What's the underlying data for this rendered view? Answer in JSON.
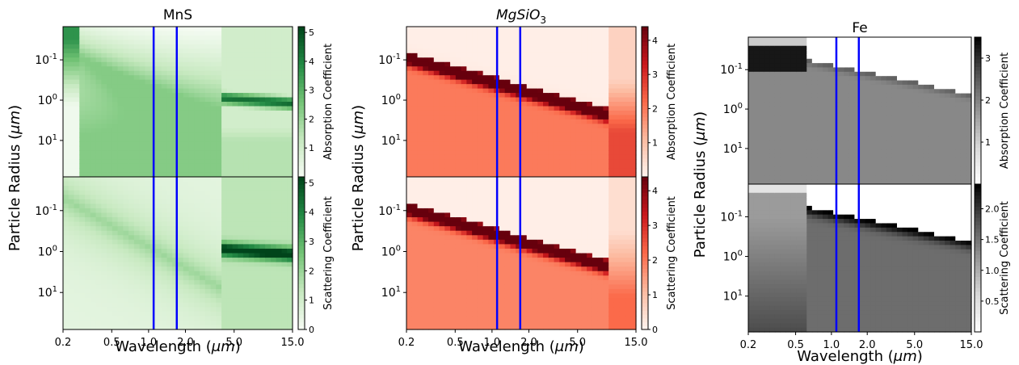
{
  "chart_data": [
    {
      "type": "heatmap",
      "title": "MnS",
      "cmap": "greens",
      "xlabel": "Wavelength (μm)",
      "ylabel": "Particle Radius (μm)",
      "x_scale": "log",
      "y_scale": "log",
      "y_inverted": true,
      "xlim": [
        0.2,
        15.0
      ],
      "ylim_um": [
        0.015,
        80
      ],
      "x_ticks": [
        "0.2",
        "0.5",
        "1.0",
        "2.0",
        "5.0",
        "15.0"
      ],
      "y_ticks": [
        "10^-1",
        "10^0",
        "10^1"
      ],
      "vlines_um": [
        1.1,
        1.7
      ],
      "vline_color": "#0000ff",
      "panels": [
        {
          "name": "Absorption",
          "colorbar_label": "Absorption Coefficient",
          "vmax": 5.2,
          "cbar_ticks": [
            "1",
            "2",
            "3",
            "4",
            "5"
          ]
        },
        {
          "name": "Scattering",
          "colorbar_label": "Scattering Coefficient",
          "vmax": 5.2,
          "cbar_ticks": [
            "0",
            "1",
            "2",
            "3",
            "4",
            "5"
          ]
        }
      ]
    },
    {
      "type": "heatmap",
      "title": "MgSiO3",
      "title_display": "MgSiO",
      "title_subscript": "3",
      "cmap": "reds",
      "xlabel": "Wavelength (μm)",
      "ylabel": "Particle Radius (μm)",
      "x_scale": "log",
      "y_scale": "log",
      "y_inverted": true,
      "xlim": [
        0.2,
        15.0
      ],
      "ylim_um": [
        0.015,
        80
      ],
      "x_ticks": [
        "0.2",
        "0.5",
        "1.0",
        "2.0",
        "5.0",
        "15.0"
      ],
      "y_ticks": [
        "10^-1",
        "10^0",
        "10^1"
      ],
      "vlines_um": [
        1.1,
        1.7
      ],
      "vline_color": "#0000ff",
      "panels": [
        {
          "name": "Absorption",
          "colorbar_label": "Absorption Coefficient",
          "vmax": 4.4,
          "cbar_ticks": [
            "1",
            "2",
            "3",
            "4"
          ]
        },
        {
          "name": "Scattering",
          "colorbar_label": "Scattering Coefficient",
          "vmax": 4.4,
          "cbar_ticks": [
            "0",
            "1",
            "2",
            "3",
            "4"
          ]
        }
      ]
    },
    {
      "type": "heatmap",
      "title": "Fe",
      "cmap": "greys",
      "xlabel": "Wavelength (μm)",
      "ylabel": "Particle Radius (μm)",
      "x_scale": "log",
      "y_scale": "log",
      "y_inverted": true,
      "xlim": [
        0.2,
        15.0
      ],
      "ylim_um": [
        0.015,
        80
      ],
      "x_ticks": [
        "0.2",
        "0.5",
        "1.0",
        "2.0",
        "5.0",
        "15.0"
      ],
      "y_ticks": [
        "10^-1",
        "10^0",
        "10^1"
      ],
      "vlines_um": [
        1.1,
        1.7
      ],
      "vline_color": "#0000ff",
      "panels": [
        {
          "name": "Absorption",
          "colorbar_label": "Absorption Coefficient",
          "vmax": 3.5,
          "cbar_ticks": [
            "1",
            "2",
            "3"
          ]
        },
        {
          "name": "Scattering",
          "colorbar_label": "Scattering Coefficient",
          "vmax": 2.4,
          "cbar_ticks": [
            "0.5",
            "1.0",
            "1.5",
            "2.0"
          ]
        }
      ]
    }
  ]
}
